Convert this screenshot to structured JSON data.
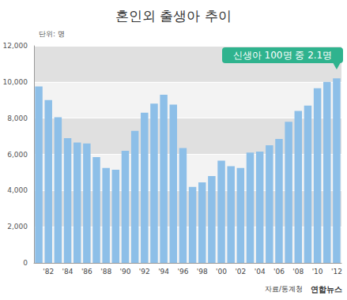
{
  "chart_data": {
    "type": "bar",
    "title": "혼인외 출생아 추이",
    "unit_label": "단위: 명",
    "annotation": "신생아 100명 중 2.1명",
    "source": "자료/통계청",
    "credit": "연합뉴스",
    "categories": [
      null,
      "'82",
      null,
      "'84",
      null,
      "'86",
      null,
      "'88",
      null,
      "'90",
      null,
      "'92",
      null,
      "'94",
      null,
      "'96",
      null,
      "'98",
      null,
      "'00",
      null,
      "'02",
      null,
      "'04",
      null,
      "'06",
      null,
      "'08",
      null,
      "'10",
      null,
      "'12"
    ],
    "values": [
      9750,
      9000,
      8050,
      6900,
      6650,
      6600,
      5850,
      5250,
      5150,
      6200,
      7300,
      8300,
      8800,
      9300,
      8750,
      6350,
      4200,
      4450,
      4800,
      5650,
      5350,
      5250,
      6100,
      6150,
      6500,
      6850,
      7800,
      8400,
      8700,
      9650,
      10000,
      10200
    ],
    "color": "#8dbfe8",
    "ylim": [
      0,
      12000
    ],
    "yticks": [
      0,
      {
        "value": 2000,
        "label": "2,000"
      },
      {
        "value": 4000,
        "label": "4,000"
      },
      {
        "value": 6000,
        "label": "6,000"
      },
      {
        "value": 8000,
        "label": "8,000"
      },
      {
        "value": 10000,
        "label": "10,000"
      },
      {
        "value": 12000,
        "label": "12,000"
      }
    ],
    "grid": true
  }
}
